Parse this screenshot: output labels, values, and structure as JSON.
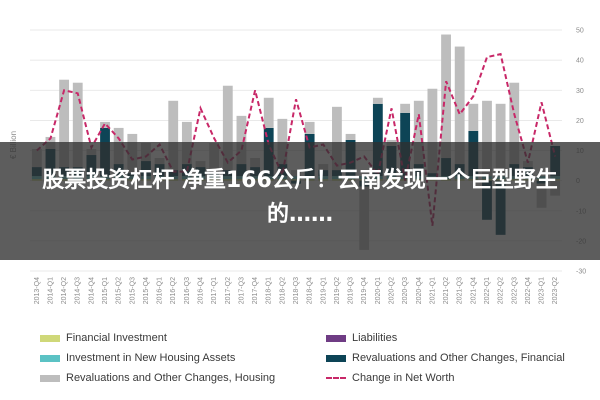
{
  "overlay": {
    "title": "股票投资杠杆 净重166公斤！云南发现一个巨型野生的……"
  },
  "chart_data": {
    "type": "bar",
    "ylabel": "€ Billion",
    "ylim": [
      -30,
      50
    ],
    "yticks": [
      50,
      40,
      30,
      20,
      10,
      0,
      -10,
      -20,
      -30
    ],
    "y_axis_position": "right",
    "grid": true,
    "legend_position": "bottom",
    "categories": [
      "2013-Q4",
      "2014-Q1",
      "2014-Q2",
      "2014-Q3",
      "2014-Q4",
      "2015-Q1",
      "2015-Q2",
      "2015-Q3",
      "2015-Q4",
      "2016-Q1",
      "2016-Q2",
      "2016-Q3",
      "2016-Q4",
      "2017-Q1",
      "2017-Q2",
      "2017-Q3",
      "2017-Q4",
      "2018-Q1",
      "2018-Q2",
      "2018-Q3",
      "2018-Q4",
      "2019-Q1",
      "2019-Q2",
      "2019-Q3",
      "2019-Q4",
      "2020-Q1",
      "2020-Q2",
      "2020-Q3",
      "2020-Q4",
      "2021-Q1",
      "2021-Q2",
      "2021-Q3",
      "2021-Q4",
      "2022-Q1",
      "2022-Q2",
      "2022-Q3",
      "2022-Q4",
      "2023-Q1",
      "2023-Q2"
    ],
    "series": [
      {
        "name": "Financial Investment",
        "color": "#cfd879",
        "kind": "bar",
        "values": [
          0.5,
          0.5,
          0.5,
          0.5,
          0.5,
          0.5,
          0.5,
          0.5,
          0.5,
          0.5,
          0.5,
          0.5,
          0.5,
          0.5,
          0.5,
          0.5,
          0.5,
          0.5,
          0.5,
          0.5,
          0.5,
          0.5,
          0.5,
          0.5,
          0.5,
          0.5,
          0.5,
          0.5,
          0.5,
          0.5,
          0.5,
          0.5,
          0.5,
          0.5,
          0.5,
          0.5,
          0.5,
          0.5,
          0.5
        ]
      },
      {
        "name": "Liabilities",
        "color": "#6f3c84",
        "kind": "bar",
        "values": [
          0,
          0,
          0,
          0,
          0,
          0,
          0,
          0,
          0,
          0,
          0,
          0,
          0,
          0,
          0,
          0,
          0,
          0,
          0,
          0,
          0,
          0,
          0,
          0,
          0,
          0,
          0,
          0,
          0,
          0,
          0,
          0,
          0,
          0,
          0,
          0,
          0,
          0,
          0
        ]
      },
      {
        "name": "Investment in New Housing Assets",
        "color": "#5bc2c4",
        "kind": "bar",
        "values": [
          1,
          1,
          1,
          1,
          1,
          1,
          1,
          1,
          1,
          1,
          1,
          1,
          1,
          1,
          1,
          1,
          1,
          1,
          1,
          1,
          1,
          1,
          1,
          1,
          1,
          1,
          1,
          1,
          1,
          1,
          1,
          1,
          1,
          1,
          1,
          1,
          1,
          1,
          1
        ]
      },
      {
        "name": "Revaluations and Other Changes, Financial",
        "color": "#0d4456",
        "kind": "bar",
        "values": [
          3,
          9,
          3,
          3,
          7,
          16,
          4,
          1,
          5,
          4,
          2,
          4,
          3,
          1,
          2,
          4,
          3,
          16,
          4,
          -1,
          14,
          2,
          2,
          12,
          -2,
          24,
          10,
          21,
          4,
          1,
          6,
          4,
          15,
          -13,
          -18,
          4,
          3,
          -1,
          10
        ]
      },
      {
        "name": "Revaluations and Other Changes, Housing",
        "color": "#bdbdbd",
        "kind": "bar",
        "values": [
          6,
          4,
          29,
          28,
          2,
          2,
          12,
          13,
          6,
          2,
          23,
          14,
          2,
          10,
          28,
          16,
          3,
          10,
          15,
          2,
          4,
          2,
          21,
          2,
          -21,
          2,
          2,
          3,
          21,
          28,
          41,
          39,
          9,
          25,
          24,
          27,
          2,
          -8,
          -5
        ]
      },
      {
        "name": "Change in Net Worth",
        "color": "#c82868",
        "kind": "dashed-line",
        "values": [
          10,
          14,
          30,
          29,
          11,
          19,
          14,
          7,
          8,
          12,
          3,
          3,
          24,
          14,
          6,
          10,
          30,
          12,
          2,
          27,
          11,
          12,
          5,
          6,
          8,
          2,
          24,
          0,
          22,
          -15,
          33,
          22,
          28,
          41,
          42,
          22,
          6,
          26,
          8
        ]
      }
    ]
  },
  "legend": {
    "items": [
      {
        "label": "Financial Investment",
        "color": "#cfd879",
        "style": "bar"
      },
      {
        "label": "Liabilities",
        "color": "#6f3c84",
        "style": "bar"
      },
      {
        "label": "Investment in New Housing Assets",
        "color": "#5bc2c4",
        "style": "bar"
      },
      {
        "label": "Revaluations and Other Changes, Financial",
        "color": "#0d4456",
        "style": "bar"
      },
      {
        "label": "Revaluations and Other Changes, Housing",
        "color": "#bdbdbd",
        "style": "bar"
      },
      {
        "label": "Change in Net Worth",
        "color": "#c82868",
        "style": "dashed-line"
      }
    ]
  }
}
